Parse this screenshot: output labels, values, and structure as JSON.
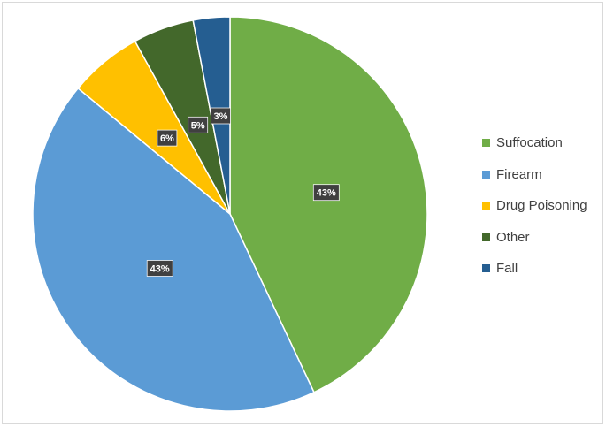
{
  "chart_data": {
    "type": "pie",
    "title": "",
    "legend_position": "right",
    "slices": [
      {
        "label": "Suffocation",
        "value": 43,
        "data_label": "43%",
        "color": "#70ad47"
      },
      {
        "label": "Firearm",
        "value": 43,
        "data_label": "43%",
        "color": "#5b9bd5"
      },
      {
        "label": "Drug Poisoning",
        "value": 6,
        "data_label": "6%",
        "color": "#ffc000"
      },
      {
        "label": "Other",
        "value": 5,
        "data_label": "5%",
        "color": "#43682b"
      },
      {
        "label": "Fall",
        "value": 3,
        "data_label": "3%",
        "color": "#255e91"
      }
    ]
  }
}
